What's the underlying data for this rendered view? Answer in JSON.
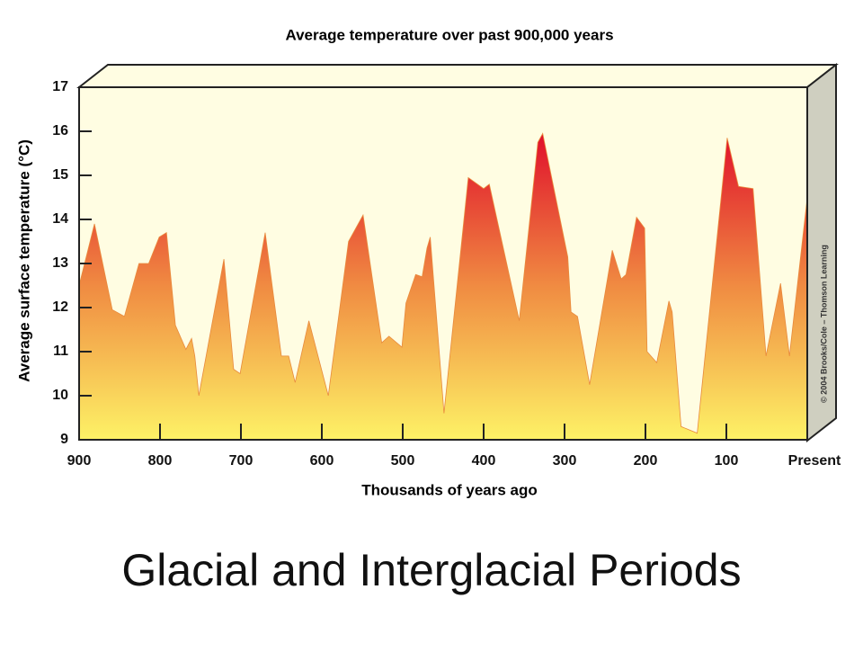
{
  "chart_data": {
    "type": "area",
    "title": "Average temperature over past 900,000 years",
    "xlabel": "Thousands of years ago",
    "ylabel": "Average surface temperature (°C)",
    "caption": "Glacial and Interglacial Periods",
    "credit": "© 2004 Brooks/Cole – Thomson Learning",
    "x": [
      900,
      881,
      859,
      844,
      826,
      814,
      801,
      792,
      781,
      768,
      761,
      757,
      752,
      721,
      709,
      701,
      670,
      650,
      641,
      633,
      616,
      592,
      567,
      549,
      526,
      517,
      501,
      496,
      484,
      476,
      470,
      466,
      449,
      419,
      400,
      393,
      356,
      333,
      327,
      296,
      292,
      284,
      269,
      241,
      230,
      224,
      211,
      201,
      198,
      186,
      171,
      167,
      156,
      136,
      99,
      85,
      67,
      51,
      33,
      22,
      0
    ],
    "values": [
      12.5,
      13.9,
      11.95,
      11.8,
      13.0,
      13.0,
      13.6,
      13.7,
      11.6,
      11.05,
      11.3,
      10.9,
      10.0,
      13.1,
      10.6,
      10.5,
      13.7,
      10.9,
      10.9,
      10.3,
      11.7,
      10.0,
      13.5,
      14.1,
      11.2,
      11.35,
      11.1,
      12.1,
      12.75,
      12.7,
      13.35,
      13.6,
      9.6,
      14.95,
      14.7,
      14.8,
      11.7,
      15.75,
      15.95,
      13.15,
      11.9,
      11.8,
      10.25,
      13.3,
      12.65,
      12.75,
      14.05,
      13.8,
      11.0,
      10.75,
      12.15,
      11.9,
      9.3,
      9.15,
      15.85,
      14.75,
      14.7,
      10.9,
      12.55,
      10.9,
      14.5
    ],
    "xlim": [
      900,
      0
    ],
    "ylim": [
      9,
      17
    ],
    "xticks": [
      900,
      800,
      700,
      600,
      500,
      400,
      300,
      200,
      100,
      {
        "value": 0,
        "label": "Present"
      }
    ],
    "yticks": [
      9,
      10,
      11,
      12,
      13,
      14,
      15,
      16,
      17
    ],
    "gradient": [
      "#e0102c",
      "#f08c42",
      "#fdf266"
    ],
    "background": "#fffde2"
  }
}
